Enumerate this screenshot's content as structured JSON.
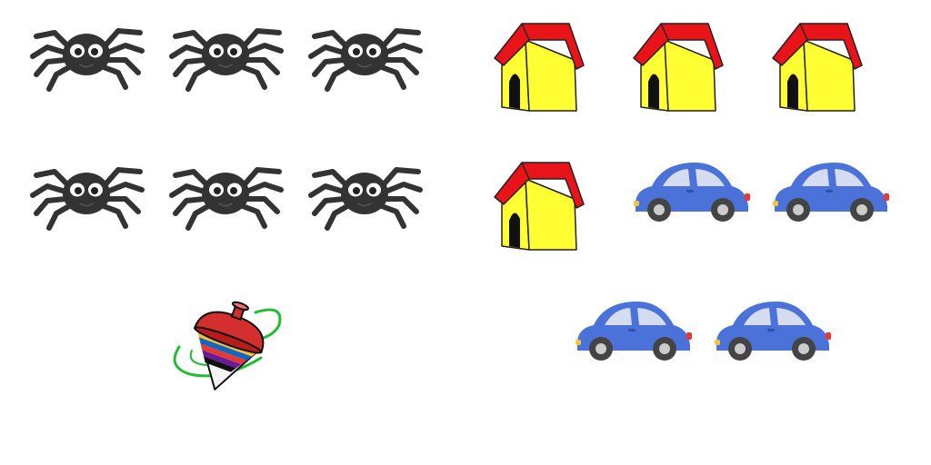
{
  "scene": {
    "background": "#ffffff",
    "groups": [
      {
        "kind": "spider",
        "icon": "spider-icon",
        "count": 6,
        "colors": {
          "body": "#333333",
          "eye": "#ffffff",
          "pupil": "#222222"
        }
      },
      {
        "kind": "top",
        "icon": "spinning-top-icon",
        "count": 1,
        "colors": {
          "cap": "#d32f2f",
          "stripes": [
            "#fbc02d",
            "#1565c0",
            "#e53935",
            "#6a1b9a",
            "#111111"
          ],
          "swirl": "#22bb33"
        }
      },
      {
        "kind": "house",
        "icon": "doghouse-icon",
        "count": 4,
        "colors": {
          "roof": "#e8141a",
          "wall": "#ffff33",
          "door": "#111111"
        }
      },
      {
        "kind": "car",
        "icon": "car-icon",
        "count": 4,
        "colors": {
          "body": "#4a72d9",
          "window": "#d6dcef",
          "tire": "#444444",
          "hub": "#cccccc",
          "light": "#e53935"
        }
      }
    ]
  }
}
